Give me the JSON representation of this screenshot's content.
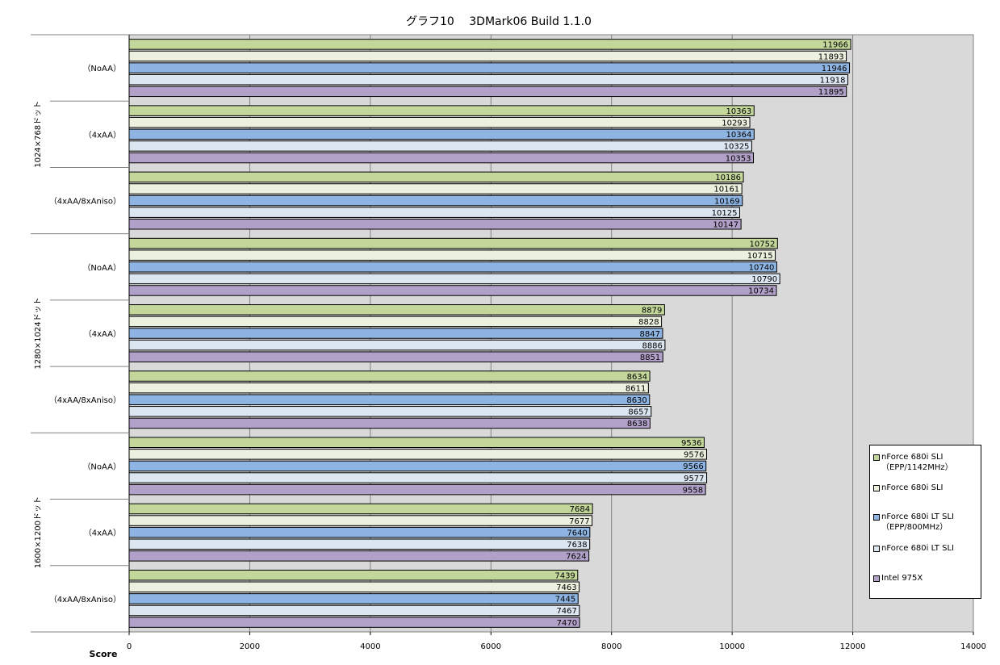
{
  "chart_data": {
    "type": "bar",
    "orientation": "horizontal",
    "title": "グラフ10　 3DMark06 Build 1.1.0",
    "xlabel": "Score",
    "xlim": [
      0,
      14000
    ],
    "xticks": [
      "0",
      "2000",
      "4000",
      "6000",
      "8000",
      "10000",
      "12000",
      "14000"
    ],
    "grid": true,
    "legend_position": "right",
    "resolution_groups": [
      {
        "label": "1024×768ドット",
        "settings": [
          {
            "label": "（NoAA）",
            "values": [
              11966,
              11893,
              11946,
              11918,
              11895
            ]
          },
          {
            "label": "（4xAA）",
            "values": [
              10363,
              10293,
              10364,
              10325,
              10353
            ]
          },
          {
            "label": "（4xAA/8xAniso）",
            "values": [
              10186,
              10161,
              10169,
              10125,
              10147
            ]
          }
        ]
      },
      {
        "label": "1280×1024ドット",
        "settings": [
          {
            "label": "（NoAA）",
            "values": [
              10752,
              10715,
              10740,
              10790,
              10734
            ]
          },
          {
            "label": "（4xAA）",
            "values": [
              8879,
              8828,
              8847,
              8886,
              8851
            ]
          },
          {
            "label": "（4xAA/8xAniso）",
            "values": [
              8634,
              8611,
              8630,
              8657,
              8638
            ]
          }
        ]
      },
      {
        "label": "1600×1200ドット",
        "settings": [
          {
            "label": "（NoAA）",
            "values": [
              9536,
              9576,
              9566,
              9577,
              9558
            ]
          },
          {
            "label": "（4xAA）",
            "values": [
              7684,
              7677,
              7640,
              7638,
              7624
            ]
          },
          {
            "label": "（4xAA/8xAniso）",
            "values": [
              7439,
              7463,
              7445,
              7467,
              7470
            ]
          }
        ]
      }
    ],
    "series": [
      {
        "name": "nForce 680i SLI\n（EPP/1142MHz）",
        "color": "#c4d79b"
      },
      {
        "name": "nForce 680i SLI",
        "color": "#ebf1de"
      },
      {
        "name": "nForce 680i LT SLI\n（EPP/800MHz）",
        "color": "#8db4e2"
      },
      {
        "name": "nForce 680i LT SLI",
        "color": "#dce6f1"
      },
      {
        "name": "Intel 975X",
        "color": "#b1a0c7"
      }
    ],
    "plot_background": "#d9d9d9",
    "bar_border": "#000000"
  }
}
